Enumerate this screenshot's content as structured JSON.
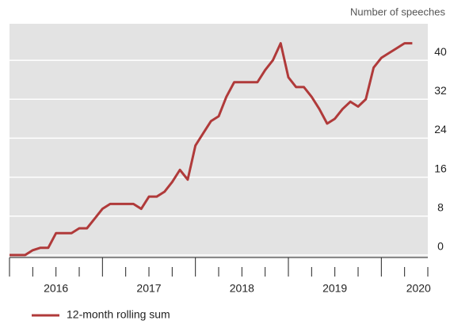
{
  "chart_data": {
    "type": "line",
    "y_axis_label": "Number of speeches",
    "x": [
      2016,
      2016.083,
      2016.167,
      2016.25,
      2016.333,
      2016.417,
      2016.5,
      2016.583,
      2016.667,
      2016.75,
      2016.833,
      2016.917,
      2017,
      2017.083,
      2017.167,
      2017.25,
      2017.333,
      2017.417,
      2017.5,
      2017.583,
      2017.667,
      2017.75,
      2017.833,
      2017.917,
      2018,
      2018.083,
      2018.167,
      2018.25,
      2018.333,
      2018.417,
      2018.5,
      2018.583,
      2018.667,
      2018.75,
      2018.833,
      2018.917,
      2019,
      2019.083,
      2019.167,
      2019.25,
      2019.333,
      2019.417,
      2019.5,
      2019.583,
      2019.667,
      2019.75,
      2019.833,
      2019.917,
      2020,
      2020.083,
      2020.167,
      2020.25,
      2020.333
    ],
    "series": [
      {
        "name": "12-month rolling sum",
        "color": "#b03a3a",
        "values": [
          0,
          0,
          0,
          1,
          1.5,
          1.5,
          4.5,
          4.5,
          4.5,
          5.5,
          5.5,
          7.5,
          9.5,
          10.5,
          10.5,
          10.5,
          10.5,
          9.5,
          12,
          12,
          13,
          15,
          17.5,
          15.5,
          22.5,
          25,
          27.5,
          28.5,
          32.5,
          35.5,
          35.5,
          35.5,
          35.5,
          38,
          40,
          43.5,
          36.5,
          34.5,
          34.5,
          32.5,
          30,
          27,
          28,
          30,
          31.5,
          30.5,
          32,
          38.5,
          40.5,
          41.5,
          42.5,
          43.5,
          43.5
        ]
      }
    ],
    "xlim": [
      2016,
      2020.5
    ],
    "xticks": [
      {
        "value": 2016.5,
        "label": "2016"
      },
      {
        "value": 2017.5,
        "label": "2017"
      },
      {
        "value": 2018.5,
        "label": "2018"
      },
      {
        "value": 2019.5,
        "label": "2019"
      },
      {
        "value": 2020.4,
        "label": "2020"
      }
    ],
    "ylim": [
      -0.5,
      47.5
    ],
    "yticks": [
      0,
      8,
      16,
      24,
      32,
      40
    ],
    "grid": true
  }
}
